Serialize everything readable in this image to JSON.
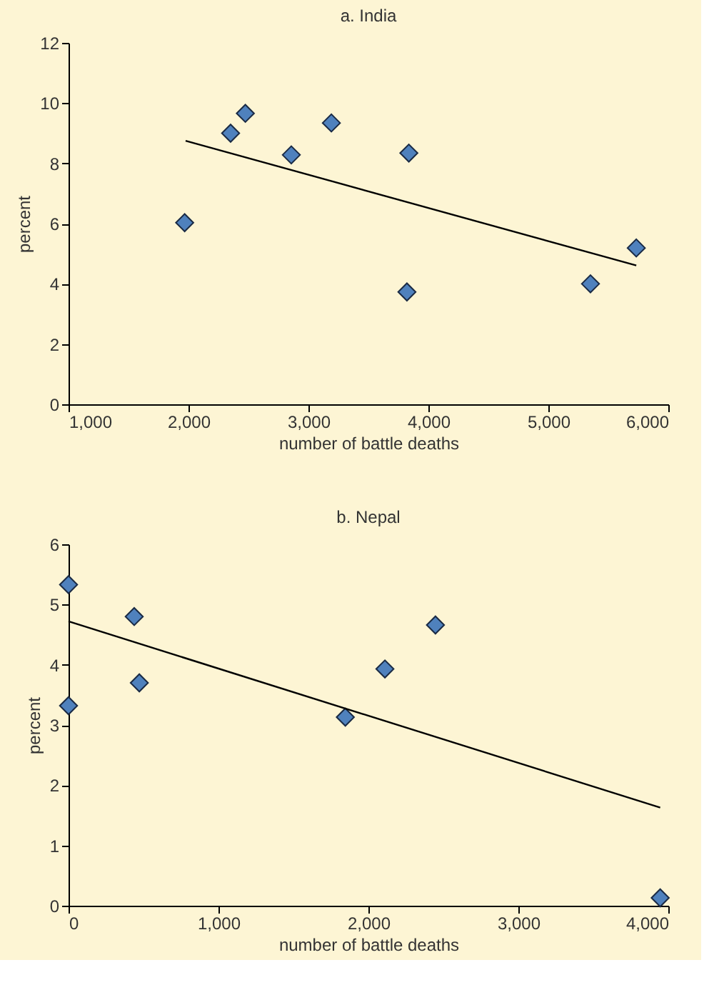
{
  "chart_data": [
    {
      "type": "scatter",
      "title": "a. India",
      "xlabel": "number of battle deaths",
      "ylabel": "percent",
      "xlim": [
        1000,
        6000
      ],
      "ylim": [
        0,
        12
      ],
      "xticks": [
        {
          "value": 1000,
          "label": "1,000"
        },
        {
          "value": 2000,
          "label": "2,000"
        },
        {
          "value": 3000,
          "label": "3,000"
        },
        {
          "value": 4000,
          "label": "4,000"
        },
        {
          "value": 5000,
          "label": "5,000"
        },
        {
          "value": 6000,
          "label": "6,000"
        }
      ],
      "yticks": [
        0,
        2,
        4,
        6,
        8,
        10,
        12
      ],
      "grid": false,
      "series": [
        {
          "marker": "diamond",
          "color": "#4f81bd",
          "x": [
            1968,
            2351,
            2474,
            2857,
            3191,
            3837,
            3821,
            5351,
            5733
          ],
          "values": [
            6.03,
            9.0,
            9.66,
            8.28,
            9.34,
            8.34,
            3.73,
            4.0,
            5.19
          ]
        },
        {
          "type": "line",
          "marker": "none",
          "color": "#000000",
          "x": [
            1976,
            5733
          ],
          "values": [
            8.75,
            4.61
          ]
        }
      ]
    },
    {
      "type": "scatter",
      "title": "b. Nepal",
      "xlabel": "number of battle deaths",
      "ylabel": "percent",
      "xlim": [
        0,
        4000
      ],
      "ylim": [
        0,
        6
      ],
      "xticks": [
        0,
        {
          "value": 1000,
          "label": "1,000"
        },
        {
          "value": 2000,
          "label": "2,000"
        },
        {
          "value": 3000,
          "label": "3,000"
        },
        {
          "value": 4000,
          "label": "4,000"
        }
      ],
      "yticks": [
        0,
        1,
        2,
        3,
        4,
        5,
        6
      ],
      "grid": false,
      "series": [
        {
          "marker": "diamond",
          "color": "#4f81bd",
          "x": [
            0,
            0,
            438,
            472,
            1846,
            2110,
            2447,
            3946
          ],
          "values": [
            5.33,
            3.32,
            4.8,
            3.7,
            3.13,
            3.93,
            4.66,
            0.13
          ]
        },
        {
          "type": "line",
          "marker": "none",
          "color": "#000000",
          "x": [
            0,
            3946
          ],
          "values": [
            4.72,
            1.63
          ]
        }
      ]
    }
  ]
}
